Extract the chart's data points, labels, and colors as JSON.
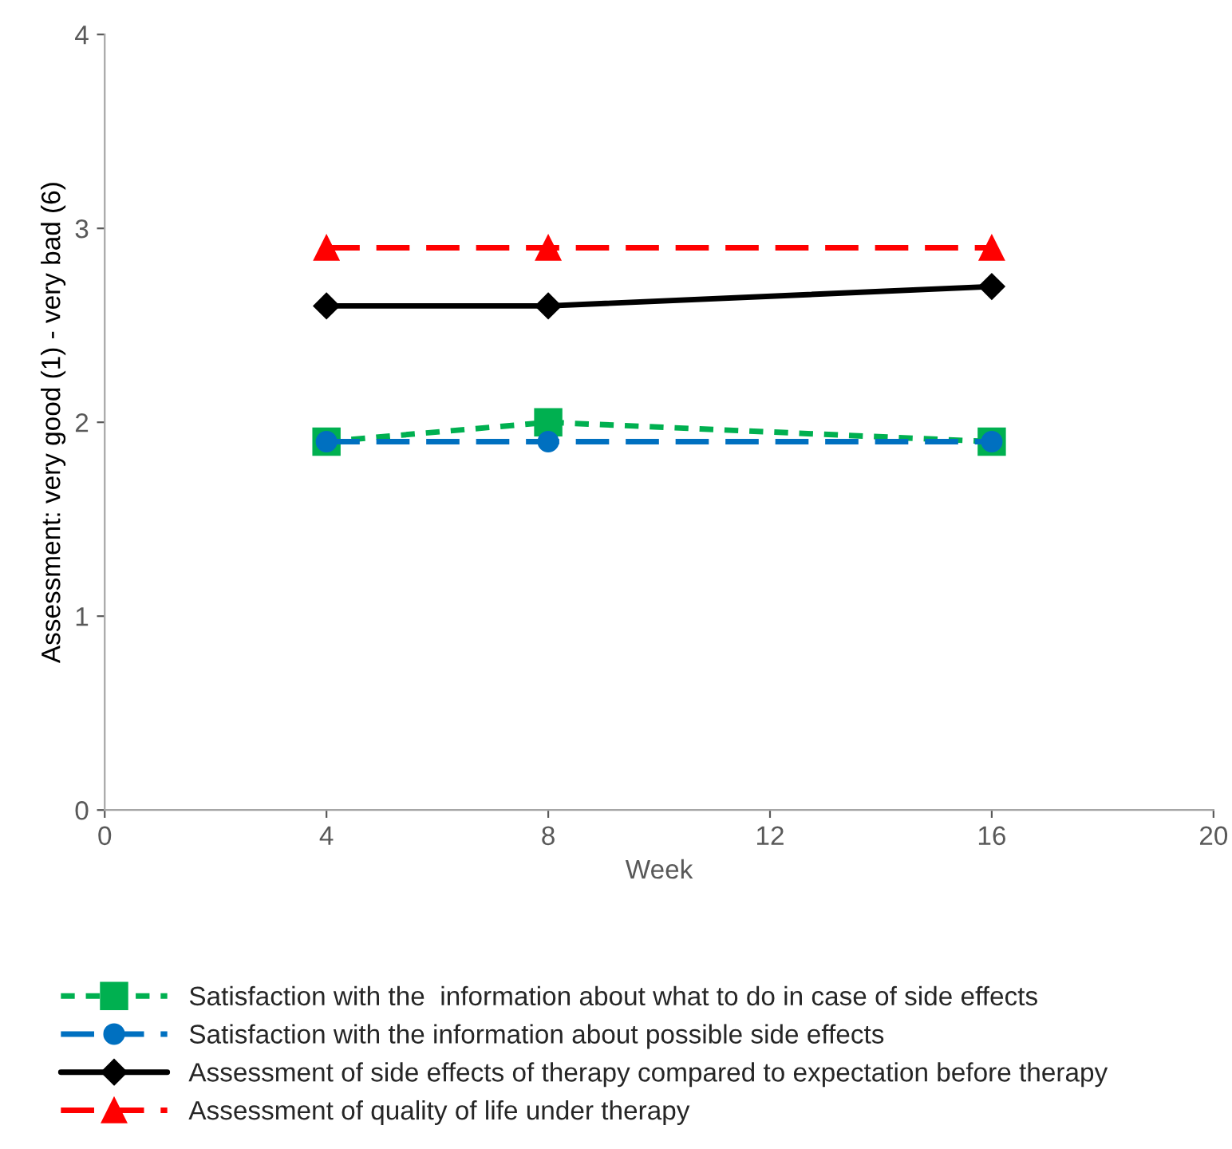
{
  "chart_data": {
    "type": "line",
    "xlabel": "Week",
    "ylabel": "Assessment: very good (1) - very bad (6)",
    "x": [
      4,
      8,
      16
    ],
    "series": [
      {
        "name": "Satisfaction with the  information about what to do in case of side effects",
        "color": "#00b050",
        "values": [
          1.9,
          2.0,
          1.9
        ],
        "marker": "square",
        "line_style": "dotted"
      },
      {
        "name": "Satisfaction with the information about possible side effects",
        "color": "#0070c0",
        "values": [
          1.9,
          1.9,
          1.9
        ],
        "marker": "circle",
        "line_style": "dashed"
      },
      {
        "name": "Assessment of side effects of therapy compared to expectation before therapy",
        "color": "#000000",
        "values": [
          2.6,
          2.6,
          2.7
        ],
        "marker": "diamond",
        "line_style": "solid"
      },
      {
        "name": "Assessment of quality of life under therapy",
        "color": "#ff0000",
        "values": [
          2.9,
          2.9,
          2.9
        ],
        "marker": "triangle",
        "line_style": "dashed"
      }
    ],
    "xlim": [
      0,
      20
    ],
    "xticks": [
      0,
      4,
      8,
      12,
      16,
      20
    ],
    "ylim": [
      0,
      4
    ],
    "yticks": [
      0,
      1,
      2,
      3,
      4
    ],
    "grid": false,
    "legend": "bottom"
  }
}
